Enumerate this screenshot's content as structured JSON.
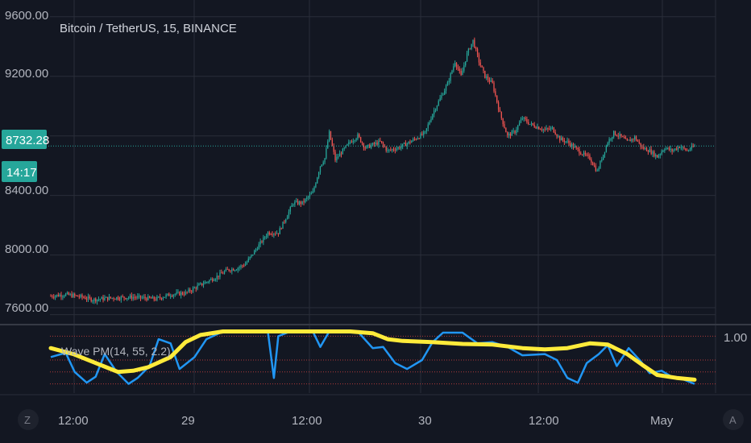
{
  "header": {
    "title": "Bitcoin / TetherUS, 15, BINANCE"
  },
  "indicator": {
    "label": "Wave PM(14, 55, 2.2)",
    "scale_label": "1.00"
  },
  "last_price": {
    "value": "8732.28",
    "countdown": "14:17"
  },
  "corner_buttons": {
    "left": "Z",
    "right": "A"
  },
  "colors": {
    "background": "#131722",
    "grid": "#2a2e39",
    "bull": "#26a69a",
    "bear": "#ef5350",
    "price_line": "#26a69a",
    "wave_fast": "#2196f3",
    "wave_slow": "#ffeb3b",
    "level_lines": "#b03a3a"
  },
  "chart_data": [
    {
      "type": "candlestick",
      "title": "Bitcoin / TetherUS, 15, BINANCE",
      "x_tick_labels": [
        "12:00",
        "29",
        "12:00",
        "30",
        "12:00",
        "May"
      ],
      "y_tick_labels": [
        "9600.00",
        "9200.00",
        "8400.00",
        "8000.00",
        "7600.00"
      ],
      "ylim": [
        7560,
        9680
      ],
      "last_price": 8732.28,
      "grid": true,
      "close_path": [
        [
          0,
          7725
        ],
        [
          10,
          7735
        ],
        [
          20,
          7720
        ],
        [
          28,
          7700
        ],
        [
          40,
          7712
        ],
        [
          55,
          7718
        ],
        [
          70,
          7705
        ],
        [
          80,
          7735
        ],
        [
          90,
          7745
        ],
        [
          100,
          7800
        ],
        [
          110,
          7850
        ],
        [
          118,
          7900
        ],
        [
          124,
          7910
        ],
        [
          130,
          7940
        ],
        [
          140,
          8080
        ],
        [
          145,
          8150
        ],
        [
          152,
          8150
        ],
        [
          158,
          8270
        ],
        [
          162,
          8350
        ],
        [
          168,
          8350
        ],
        [
          175,
          8420
        ],
        [
          180,
          8600
        ],
        [
          183,
          8650
        ],
        [
          186,
          8820
        ],
        [
          190,
          8640
        ],
        [
          195,
          8700
        ],
        [
          200,
          8760
        ],
        [
          205,
          8800
        ],
        [
          210,
          8720
        ],
        [
          215,
          8740
        ],
        [
          220,
          8760
        ],
        [
          225,
          8700
        ],
        [
          232,
          8720
        ],
        [
          240,
          8760
        ],
        [
          245,
          8790
        ],
        [
          250,
          8820
        ],
        [
          255,
          8950
        ],
        [
          260,
          9050
        ],
        [
          265,
          9150
        ],
        [
          270,
          9300
        ],
        [
          274,
          9200
        ],
        [
          278,
          9350
        ],
        [
          282,
          9440
        ],
        [
          286,
          9300
        ],
        [
          290,
          9200
        ],
        [
          295,
          9150
        ],
        [
          300,
          8950
        ],
        [
          305,
          8800
        ],
        [
          310,
          8830
        ],
        [
          315,
          8920
        ],
        [
          320,
          8880
        ],
        [
          325,
          8860
        ],
        [
          330,
          8840
        ],
        [
          335,
          8850
        ],
        [
          340,
          8780
        ],
        [
          345,
          8760
        ],
        [
          350,
          8720
        ],
        [
          355,
          8680
        ],
        [
          360,
          8650
        ],
        [
          365,
          8560
        ],
        [
          368,
          8650
        ],
        [
          372,
          8760
        ],
        [
          376,
          8820
        ],
        [
          380,
          8800
        ],
        [
          385,
          8760
        ],
        [
          390,
          8790
        ],
        [
          395,
          8720
        ],
        [
          400,
          8700
        ],
        [
          405,
          8660
        ],
        [
          410,
          8720
        ],
        [
          415,
          8700
        ],
        [
          420,
          8730
        ],
        [
          425,
          8700
        ],
        [
          430,
          8732
        ]
      ],
      "series": [
        {
          "values": [
            [
              0,
              0.55
            ],
            [
              10,
              0.62
            ],
            [
              16,
              0.3
            ],
            [
              24,
              0.12
            ],
            [
              30,
              0.22
            ],
            [
              36,
              0.6
            ],
            [
              44,
              0.3
            ],
            [
              52,
              0.1
            ],
            [
              58,
              0.2
            ],
            [
              66,
              0.4
            ],
            [
              72,
              0.85
            ],
            [
              80,
              0.78
            ],
            [
              86,
              0.35
            ],
            [
              96,
              0.55
            ],
            [
              104,
              0.85
            ],
            [
              115,
              0.98
            ],
            [
              140,
              0.98
            ],
            [
              145,
              0.98
            ],
            [
              149,
              0.2
            ],
            [
              152,
              0.9
            ],
            [
              160,
              0.98
            ],
            [
              175,
              0.98
            ],
            [
              180,
              0.72
            ],
            [
              186,
              0.98
            ],
            [
              205,
              0.98
            ],
            [
              215,
              0.7
            ],
            [
              222,
              0.72
            ],
            [
              230,
              0.45
            ],
            [
              238,
              0.35
            ],
            [
              248,
              0.5
            ],
            [
              255,
              0.8
            ],
            [
              262,
              0.96
            ],
            [
              275,
              0.96
            ],
            [
              285,
              0.78
            ],
            [
              295,
              0.8
            ],
            [
              305,
              0.72
            ],
            [
              315,
              0.58
            ],
            [
              330,
              0.6
            ],
            [
              338,
              0.5
            ],
            [
              345,
              0.2
            ],
            [
              352,
              0.12
            ],
            [
              358,
              0.45
            ],
            [
              366,
              0.6
            ],
            [
              372,
              0.75
            ],
            [
              378,
              0.4
            ],
            [
              386,
              0.7
            ],
            [
              394,
              0.48
            ],
            [
              400,
              0.28
            ],
            [
              408,
              0.32
            ],
            [
              416,
              0.2
            ],
            [
              422,
              0.18
            ],
            [
              430,
              0.1
            ]
          ]
        },
        {
          "values": [
            [
              0,
              0.7
            ],
            [
              15,
              0.6
            ],
            [
              30,
              0.45
            ],
            [
              45,
              0.3
            ],
            [
              55,
              0.32
            ],
            [
              65,
              0.38
            ],
            [
              80,
              0.55
            ],
            [
              90,
              0.8
            ],
            [
              100,
              0.92
            ],
            [
              115,
              0.98
            ],
            [
              200,
              0.98
            ],
            [
              215,
              0.95
            ],
            [
              225,
              0.85
            ],
            [
              235,
              0.82
            ],
            [
              255,
              0.8
            ],
            [
              275,
              0.77
            ],
            [
              295,
              0.76
            ],
            [
              315,
              0.7
            ],
            [
              330,
              0.68
            ],
            [
              345,
              0.7
            ],
            [
              360,
              0.78
            ],
            [
              372,
              0.76
            ],
            [
              385,
              0.6
            ],
            [
              395,
              0.42
            ],
            [
              405,
              0.25
            ],
            [
              418,
              0.2
            ],
            [
              430,
              0.17
            ]
          ]
        }
      ],
      "indicator_ylim": [
        0,
        1
      ],
      "level_lines": [
        0.1,
        0.3,
        0.5,
        0.9
      ]
    }
  ]
}
